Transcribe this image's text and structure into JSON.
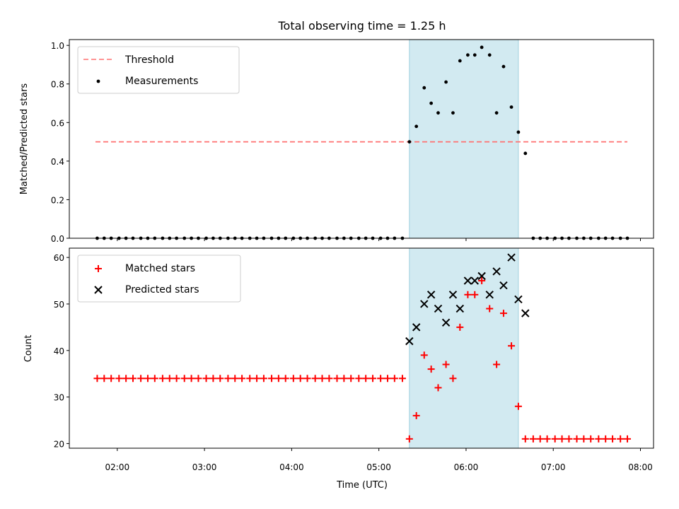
{
  "chart_data": {
    "title": "Total observing time = 1.25 h",
    "xlabel": "Time (UTC)",
    "x_unit": "hours UTC",
    "xlim": [
      1.45,
      8.15
    ],
    "xticks": [
      {
        "value": 2,
        "label": "02:00"
      },
      {
        "value": 3,
        "label": "03:00"
      },
      {
        "value": 4,
        "label": "04:00"
      },
      {
        "value": 5,
        "label": "05:00"
      },
      {
        "value": 6,
        "label": "06:00"
      },
      {
        "value": 7,
        "label": "07:00"
      },
      {
        "value": 8,
        "label": "08:00"
      }
    ],
    "highlight": {
      "x0": 5.35,
      "x1": 6.6,
      "color": "#add8e6"
    },
    "panels": [
      {
        "type": "scatter",
        "ylabel": "Matched/Predicted stars",
        "ylim": [
          0,
          1.03
        ],
        "yticks": [
          0.0,
          0.2,
          0.4,
          0.6,
          0.8,
          1.0
        ],
        "ytick_labels": [
          "0.0",
          "0.2",
          "0.4",
          "0.6",
          "0.8",
          "1.0"
        ],
        "threshold": {
          "value": 0.5,
          "x0": 1.75,
          "x1": 7.85,
          "color": "#ff7070",
          "name": "Threshold"
        },
        "measurements": {
          "name": "Measurements",
          "color": "#000000",
          "points": [
            [
              1.77,
              0
            ],
            [
              1.85,
              0
            ],
            [
              1.93,
              0
            ],
            [
              2.02,
              0
            ],
            [
              2.1,
              0
            ],
            [
              2.18,
              0
            ],
            [
              2.27,
              0
            ],
            [
              2.35,
              0
            ],
            [
              2.43,
              0
            ],
            [
              2.52,
              0
            ],
            [
              2.6,
              0
            ],
            [
              2.68,
              0
            ],
            [
              2.77,
              0
            ],
            [
              2.85,
              0
            ],
            [
              2.93,
              0
            ],
            [
              3.02,
              0
            ],
            [
              3.1,
              0
            ],
            [
              3.18,
              0
            ],
            [
              3.27,
              0
            ],
            [
              3.35,
              0
            ],
            [
              3.43,
              0
            ],
            [
              3.52,
              0
            ],
            [
              3.6,
              0
            ],
            [
              3.68,
              0
            ],
            [
              3.77,
              0
            ],
            [
              3.85,
              0
            ],
            [
              3.93,
              0
            ],
            [
              4.02,
              0
            ],
            [
              4.1,
              0
            ],
            [
              4.18,
              0
            ],
            [
              4.27,
              0
            ],
            [
              4.35,
              0
            ],
            [
              4.43,
              0
            ],
            [
              4.52,
              0
            ],
            [
              4.6,
              0
            ],
            [
              4.68,
              0
            ],
            [
              4.77,
              0
            ],
            [
              4.85,
              0
            ],
            [
              4.93,
              0
            ],
            [
              5.02,
              0
            ],
            [
              5.1,
              0
            ],
            [
              5.18,
              0
            ],
            [
              5.27,
              0
            ],
            [
              5.35,
              0.5
            ],
            [
              5.43,
              0.58
            ],
            [
              5.52,
              0.78
            ],
            [
              5.6,
              0.7
            ],
            [
              5.68,
              0.65
            ],
            [
              5.77,
              0.81
            ],
            [
              5.85,
              0.65
            ],
            [
              5.93,
              0.92
            ],
            [
              6.02,
              0.95
            ],
            [
              6.1,
              0.95
            ],
            [
              6.18,
              0.99
            ],
            [
              6.27,
              0.95
            ],
            [
              6.35,
              0.65
            ],
            [
              6.43,
              0.89
            ],
            [
              6.52,
              0.68
            ],
            [
              6.6,
              0.55
            ],
            [
              6.68,
              0.44
            ],
            [
              6.77,
              0
            ],
            [
              6.85,
              0
            ],
            [
              6.93,
              0
            ],
            [
              7.02,
              0
            ],
            [
              7.1,
              0
            ],
            [
              7.18,
              0
            ],
            [
              7.27,
              0
            ],
            [
              7.35,
              0
            ],
            [
              7.43,
              0
            ],
            [
              7.52,
              0
            ],
            [
              7.6,
              0
            ],
            [
              7.68,
              0
            ],
            [
              7.77,
              0
            ],
            [
              7.85,
              0
            ]
          ]
        }
      },
      {
        "type": "scatter",
        "ylabel": "Count",
        "ylim": [
          19,
          62
        ],
        "yticks": [
          20,
          30,
          40,
          50,
          60
        ],
        "ytick_labels": [
          "20",
          "30",
          "40",
          "50",
          "60"
        ],
        "series": [
          {
            "name": "Matched stars",
            "marker": "+",
            "color": "#ff0000",
            "points": [
              [
                1.77,
                34
              ],
              [
                1.85,
                34
              ],
              [
                1.93,
                34
              ],
              [
                2.02,
                34
              ],
              [
                2.1,
                34
              ],
              [
                2.18,
                34
              ],
              [
                2.27,
                34
              ],
              [
                2.35,
                34
              ],
              [
                2.43,
                34
              ],
              [
                2.52,
                34
              ],
              [
                2.6,
                34
              ],
              [
                2.68,
                34
              ],
              [
                2.77,
                34
              ],
              [
                2.85,
                34
              ],
              [
                2.93,
                34
              ],
              [
                3.02,
                34
              ],
              [
                3.1,
                34
              ],
              [
                3.18,
                34
              ],
              [
                3.27,
                34
              ],
              [
                3.35,
                34
              ],
              [
                3.43,
                34
              ],
              [
                3.52,
                34
              ],
              [
                3.6,
                34
              ],
              [
                3.68,
                34
              ],
              [
                3.77,
                34
              ],
              [
                3.85,
                34
              ],
              [
                3.93,
                34
              ],
              [
                4.02,
                34
              ],
              [
                4.1,
                34
              ],
              [
                4.18,
                34
              ],
              [
                4.27,
                34
              ],
              [
                4.35,
                34
              ],
              [
                4.43,
                34
              ],
              [
                4.52,
                34
              ],
              [
                4.6,
                34
              ],
              [
                4.68,
                34
              ],
              [
                4.77,
                34
              ],
              [
                4.85,
                34
              ],
              [
                4.93,
                34
              ],
              [
                5.02,
                34
              ],
              [
                5.1,
                34
              ],
              [
                5.18,
                34
              ],
              [
                5.27,
                34
              ],
              [
                5.35,
                21
              ],
              [
                5.43,
                26
              ],
              [
                5.52,
                39
              ],
              [
                5.6,
                36
              ],
              [
                5.68,
                32
              ],
              [
                5.77,
                37
              ],
              [
                5.85,
                34
              ],
              [
                5.93,
                45
              ],
              [
                6.02,
                52
              ],
              [
                6.1,
                52
              ],
              [
                6.18,
                55
              ],
              [
                6.27,
                49
              ],
              [
                6.35,
                37
              ],
              [
                6.43,
                48
              ],
              [
                6.52,
                41
              ],
              [
                6.6,
                28
              ],
              [
                6.68,
                21
              ],
              [
                6.77,
                21
              ],
              [
                6.85,
                21
              ],
              [
                6.93,
                21
              ],
              [
                7.02,
                21
              ],
              [
                7.1,
                21
              ],
              [
                7.18,
                21
              ],
              [
                7.27,
                21
              ],
              [
                7.35,
                21
              ],
              [
                7.43,
                21
              ],
              [
                7.52,
                21
              ],
              [
                7.6,
                21
              ],
              [
                7.68,
                21
              ],
              [
                7.77,
                21
              ],
              [
                7.85,
                21
              ]
            ]
          },
          {
            "name": "Predicted stars",
            "marker": "x",
            "color": "#000000",
            "points": [
              [
                5.35,
                42
              ],
              [
                5.43,
                45
              ],
              [
                5.52,
                50
              ],
              [
                5.6,
                52
              ],
              [
                5.68,
                49
              ],
              [
                5.77,
                46
              ],
              [
                5.85,
                52
              ],
              [
                5.93,
                49
              ],
              [
                6.02,
                55
              ],
              [
                6.1,
                55
              ],
              [
                6.18,
                56
              ],
              [
                6.27,
                52
              ],
              [
                6.35,
                57
              ],
              [
                6.43,
                54
              ],
              [
                6.52,
                60
              ],
              [
                6.6,
                51
              ],
              [
                6.68,
                48
              ]
            ]
          }
        ]
      }
    ]
  }
}
